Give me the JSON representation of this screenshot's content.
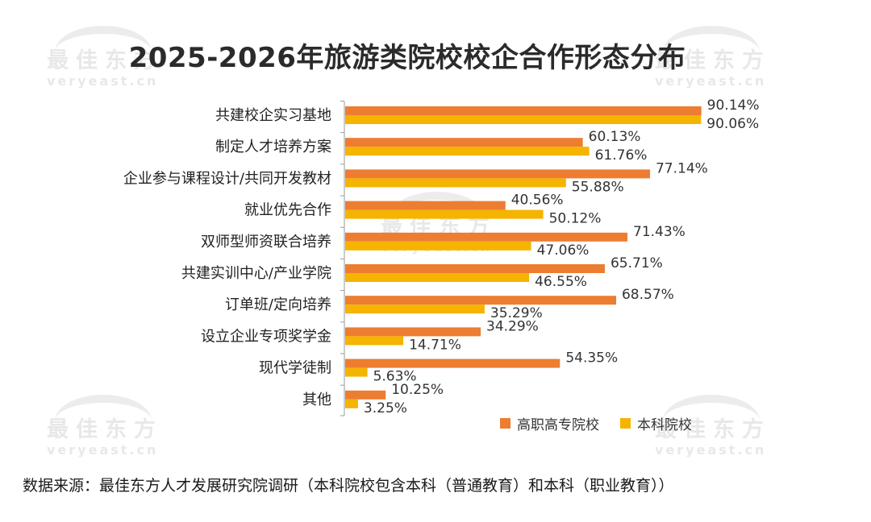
{
  "watermark": {
    "cn": "最佳东方",
    "en": "veryeast.cn"
  },
  "source_text": "数据来源：最佳东方人才发展研究院调研（本科院校包含本科（普通教育）和本科（职业教育））",
  "chart_data": {
    "type": "bar",
    "orientation": "horizontal",
    "title": "2025-2026年旅游类院校校企合作形态分布",
    "categories": [
      "共建校企实习基地",
      "制定人才培养方案",
      "企业参与课程设计/共同开发教材",
      "就业优先合作",
      "双师型师资联合培养",
      "共建实训中心/产业学院",
      "订单班/定向培养",
      "设立企业专项奖学金",
      "现代学徒制",
      "其他"
    ],
    "series": [
      {
        "name": "高职高专院校",
        "color": "#ED7D31",
        "values": [
          90.14,
          60.13,
          77.14,
          40.56,
          71.43,
          65.71,
          68.57,
          34.29,
          54.35,
          10.25
        ],
        "labels": [
          "90.14%",
          "60.13%",
          "77.14%",
          "40.56%",
          "71.43%",
          "65.71%",
          "68.57%",
          "34.29%",
          "54.35%",
          "10.25%"
        ]
      },
      {
        "name": "本科院校",
        "color": "#F4B400",
        "values": [
          90.06,
          61.76,
          55.88,
          50.12,
          47.06,
          46.55,
          35.29,
          14.71,
          5.63,
          3.25
        ],
        "labels": [
          "90.06%",
          "61.76%",
          "55.88%",
          "50.12%",
          "47.06%",
          "46.55%",
          "35.29%",
          "14.71%",
          "5.63%",
          "3.25%"
        ]
      }
    ],
    "xlim": [
      0,
      100
    ],
    "legend": "bottom-right"
  }
}
